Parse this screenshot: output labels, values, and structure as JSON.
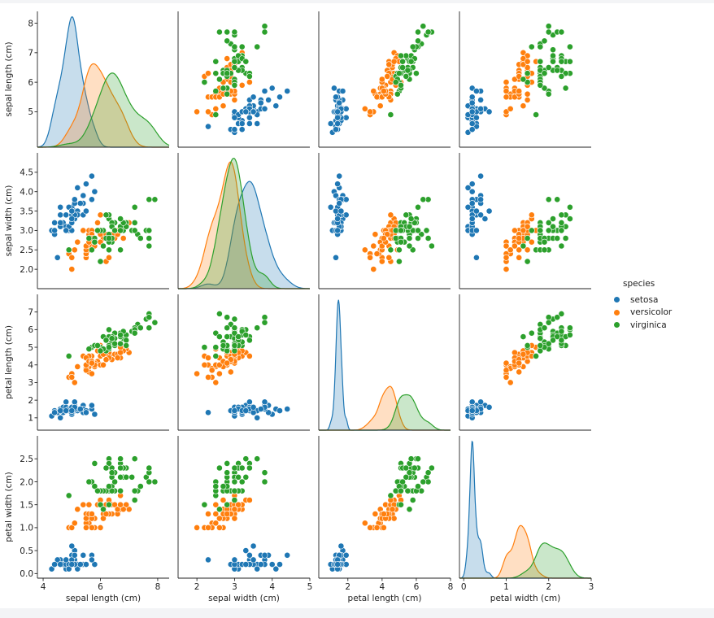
{
  "chart_data": {
    "type": "pairplot",
    "variables": [
      "sepal length (cm)",
      "sepal width (cm)",
      "petal length (cm)",
      "petal width (cm)"
    ],
    "axes": [
      {
        "label": "sepal length (cm)",
        "lim": [
          3.8,
          8.4
        ],
        "ticks": [
          4,
          6,
          8
        ],
        "y_ticks": [
          5,
          6,
          7,
          8
        ]
      },
      {
        "label": "sepal width (cm)",
        "lim": [
          1.5,
          5.0
        ],
        "ticks": [
          2,
          3,
          4,
          5
        ],
        "y_ticks": [
          2.0,
          2.5,
          3.0,
          3.5,
          4.0,
          4.5
        ]
      },
      {
        "label": "petal length (cm)",
        "lim": [
          0.3,
          8.0
        ],
        "ticks": [
          2,
          4,
          6,
          8
        ],
        "y_ticks": [
          1,
          2,
          3,
          4,
          5,
          6,
          7
        ]
      },
      {
        "label": "petal width (cm)",
        "lim": [
          -0.1,
          3.0
        ],
        "ticks": [
          0,
          1,
          2,
          3
        ],
        "y_ticks": [
          0.0,
          0.5,
          1.0,
          1.5,
          2.0,
          2.5
        ]
      }
    ],
    "hue_title": "species",
    "species": [
      {
        "name": "setosa",
        "color": "#1f77b4",
        "points": [
          [
            5.1,
            3.5,
            1.4,
            0.2
          ],
          [
            4.9,
            3.0,
            1.4,
            0.2
          ],
          [
            4.7,
            3.2,
            1.3,
            0.2
          ],
          [
            4.6,
            3.1,
            1.5,
            0.2
          ],
          [
            5.0,
            3.6,
            1.4,
            0.2
          ],
          [
            5.4,
            3.9,
            1.7,
            0.4
          ],
          [
            4.6,
            3.4,
            1.4,
            0.3
          ],
          [
            5.0,
            3.4,
            1.5,
            0.2
          ],
          [
            4.4,
            2.9,
            1.4,
            0.2
          ],
          [
            4.9,
            3.1,
            1.5,
            0.1
          ],
          [
            5.4,
            3.7,
            1.5,
            0.2
          ],
          [
            4.8,
            3.4,
            1.6,
            0.2
          ],
          [
            4.8,
            3.0,
            1.4,
            0.1
          ],
          [
            4.3,
            3.0,
            1.1,
            0.1
          ],
          [
            5.8,
            4.0,
            1.2,
            0.2
          ],
          [
            5.7,
            4.4,
            1.5,
            0.4
          ],
          [
            5.4,
            3.9,
            1.3,
            0.4
          ],
          [
            5.1,
            3.5,
            1.4,
            0.3
          ],
          [
            5.7,
            3.8,
            1.7,
            0.3
          ],
          [
            5.1,
            3.8,
            1.5,
            0.3
          ],
          [
            5.4,
            3.4,
            1.7,
            0.2
          ],
          [
            5.1,
            3.7,
            1.5,
            0.4
          ],
          [
            4.6,
            3.6,
            1.0,
            0.2
          ],
          [
            5.1,
            3.3,
            1.7,
            0.5
          ],
          [
            4.8,
            3.4,
            1.9,
            0.2
          ],
          [
            5.0,
            3.0,
            1.6,
            0.2
          ],
          [
            5.0,
            3.4,
            1.6,
            0.4
          ],
          [
            5.2,
            3.5,
            1.5,
            0.2
          ],
          [
            5.2,
            3.4,
            1.4,
            0.2
          ],
          [
            4.7,
            3.2,
            1.6,
            0.2
          ],
          [
            4.8,
            3.1,
            1.6,
            0.2
          ],
          [
            5.4,
            3.4,
            1.5,
            0.4
          ],
          [
            5.2,
            4.1,
            1.5,
            0.1
          ],
          [
            5.5,
            4.2,
            1.4,
            0.2
          ],
          [
            4.9,
            3.1,
            1.5,
            0.2
          ],
          [
            5.0,
            3.2,
            1.2,
            0.2
          ],
          [
            5.5,
            3.5,
            1.3,
            0.2
          ],
          [
            4.9,
            3.6,
            1.4,
            0.1
          ],
          [
            4.4,
            3.0,
            1.3,
            0.2
          ],
          [
            5.1,
            3.4,
            1.5,
            0.2
          ],
          [
            5.0,
            3.5,
            1.3,
            0.3
          ],
          [
            4.5,
            2.3,
            1.3,
            0.3
          ],
          [
            4.4,
            3.2,
            1.3,
            0.2
          ],
          [
            5.0,
            3.5,
            1.6,
            0.6
          ],
          [
            5.1,
            3.8,
            1.9,
            0.4
          ],
          [
            4.8,
            3.0,
            1.4,
            0.3
          ],
          [
            5.1,
            3.8,
            1.6,
            0.2
          ],
          [
            4.6,
            3.2,
            1.4,
            0.2
          ],
          [
            5.3,
            3.7,
            1.5,
            0.2
          ],
          [
            5.0,
            3.3,
            1.4,
            0.2
          ]
        ]
      },
      {
        "name": "versicolor",
        "color": "#ff7f0e",
        "points": [
          [
            7.0,
            3.2,
            4.7,
            1.4
          ],
          [
            6.4,
            3.2,
            4.5,
            1.5
          ],
          [
            6.9,
            3.1,
            4.9,
            1.5
          ],
          [
            5.5,
            2.3,
            4.0,
            1.3
          ],
          [
            6.5,
            2.8,
            4.6,
            1.5
          ],
          [
            5.7,
            2.8,
            4.5,
            1.3
          ],
          [
            6.3,
            3.3,
            4.7,
            1.6
          ],
          [
            4.9,
            2.4,
            3.3,
            1.0
          ],
          [
            6.6,
            2.9,
            4.6,
            1.3
          ],
          [
            5.2,
            2.7,
            3.9,
            1.4
          ],
          [
            5.0,
            2.0,
            3.5,
            1.0
          ],
          [
            5.9,
            3.0,
            4.2,
            1.5
          ],
          [
            6.0,
            2.2,
            4.0,
            1.0
          ],
          [
            6.1,
            2.9,
            4.7,
            1.4
          ],
          [
            5.6,
            2.9,
            3.6,
            1.3
          ],
          [
            6.7,
            3.1,
            4.4,
            1.4
          ],
          [
            5.6,
            3.0,
            4.5,
            1.5
          ],
          [
            5.8,
            2.7,
            4.1,
            1.0
          ],
          [
            6.2,
            2.2,
            4.5,
            1.5
          ],
          [
            5.6,
            2.5,
            3.9,
            1.1
          ],
          [
            5.9,
            3.2,
            4.8,
            1.8
          ],
          [
            6.1,
            2.8,
            4.0,
            1.3
          ],
          [
            6.3,
            2.5,
            4.9,
            1.5
          ],
          [
            6.1,
            2.8,
            4.7,
            1.2
          ],
          [
            6.4,
            2.9,
            4.3,
            1.3
          ],
          [
            6.6,
            3.0,
            4.4,
            1.4
          ],
          [
            6.8,
            2.8,
            4.8,
            1.4
          ],
          [
            6.7,
            3.0,
            5.0,
            1.7
          ],
          [
            6.0,
            2.9,
            4.5,
            1.5
          ],
          [
            5.7,
            2.6,
            3.5,
            1.0
          ],
          [
            5.5,
            2.4,
            3.8,
            1.1
          ],
          [
            5.5,
            2.4,
            3.7,
            1.0
          ],
          [
            5.8,
            2.7,
            3.9,
            1.2
          ],
          [
            6.0,
            2.7,
            5.1,
            1.6
          ],
          [
            5.4,
            3.0,
            4.5,
            1.5
          ],
          [
            6.0,
            3.4,
            4.5,
            1.6
          ],
          [
            6.7,
            3.1,
            4.7,
            1.5
          ],
          [
            6.3,
            2.3,
            4.4,
            1.3
          ],
          [
            5.6,
            3.0,
            4.1,
            1.3
          ],
          [
            5.5,
            2.5,
            4.0,
            1.3
          ],
          [
            5.5,
            2.6,
            4.4,
            1.2
          ],
          [
            6.1,
            3.0,
            4.6,
            1.4
          ],
          [
            5.8,
            2.6,
            4.0,
            1.2
          ],
          [
            5.0,
            2.3,
            3.3,
            1.0
          ],
          [
            5.6,
            2.7,
            4.2,
            1.3
          ],
          [
            5.7,
            3.0,
            4.2,
            1.2
          ],
          [
            5.7,
            2.9,
            4.2,
            1.3
          ],
          [
            6.2,
            2.9,
            4.3,
            1.3
          ],
          [
            5.1,
            2.5,
            3.0,
            1.1
          ],
          [
            5.7,
            2.8,
            4.1,
            1.3
          ]
        ]
      },
      {
        "name": "virginica",
        "color": "#2ca02c",
        "points": [
          [
            6.3,
            3.3,
            6.0,
            2.5
          ],
          [
            5.8,
            2.7,
            5.1,
            1.9
          ],
          [
            7.1,
            3.0,
            5.9,
            2.1
          ],
          [
            6.3,
            2.9,
            5.6,
            1.8
          ],
          [
            6.5,
            3.0,
            5.8,
            2.2
          ],
          [
            7.6,
            3.0,
            6.6,
            2.1
          ],
          [
            4.9,
            2.5,
            4.5,
            1.7
          ],
          [
            7.3,
            2.9,
            6.3,
            1.8
          ],
          [
            6.7,
            2.5,
            5.8,
            1.8
          ],
          [
            7.2,
            3.6,
            6.1,
            2.5
          ],
          [
            6.5,
            3.2,
            5.1,
            2.0
          ],
          [
            6.4,
            2.7,
            5.3,
            1.9
          ],
          [
            6.8,
            3.0,
            5.5,
            2.1
          ],
          [
            5.7,
            2.5,
            5.0,
            2.0
          ],
          [
            5.8,
            2.8,
            5.1,
            2.4
          ],
          [
            6.4,
            3.2,
            5.3,
            2.3
          ],
          [
            6.5,
            3.0,
            5.5,
            1.8
          ],
          [
            7.7,
            3.8,
            6.7,
            2.2
          ],
          [
            7.7,
            2.6,
            6.9,
            2.3
          ],
          [
            6.0,
            2.2,
            5.0,
            1.5
          ],
          [
            6.9,
            3.2,
            5.7,
            2.3
          ],
          [
            5.6,
            2.8,
            4.9,
            2.0
          ],
          [
            7.7,
            2.8,
            6.7,
            2.0
          ],
          [
            6.3,
            2.7,
            4.9,
            1.8
          ],
          [
            6.7,
            3.3,
            5.7,
            2.1
          ],
          [
            7.2,
            3.2,
            6.0,
            1.8
          ],
          [
            6.2,
            2.8,
            4.8,
            1.8
          ],
          [
            6.1,
            3.0,
            4.9,
            1.8
          ],
          [
            6.4,
            2.8,
            5.6,
            2.1
          ],
          [
            7.2,
            3.0,
            5.8,
            1.6
          ],
          [
            7.4,
            2.8,
            6.1,
            1.9
          ],
          [
            7.9,
            3.8,
            6.4,
            2.0
          ],
          [
            6.4,
            2.8,
            5.6,
            2.2
          ],
          [
            6.3,
            2.8,
            5.1,
            1.5
          ],
          [
            6.1,
            2.6,
            5.6,
            1.4
          ],
          [
            7.7,
            3.0,
            6.1,
            2.3
          ],
          [
            6.3,
            3.4,
            5.6,
            2.4
          ],
          [
            6.4,
            3.1,
            5.5,
            1.8
          ],
          [
            6.0,
            3.0,
            4.8,
            1.8
          ],
          [
            6.9,
            3.1,
            5.4,
            2.1
          ],
          [
            6.7,
            3.1,
            5.6,
            2.4
          ],
          [
            6.9,
            3.1,
            5.1,
            2.3
          ],
          [
            5.8,
            2.7,
            5.1,
            1.9
          ],
          [
            6.8,
            3.2,
            5.9,
            2.3
          ],
          [
            6.7,
            3.3,
            5.7,
            2.5
          ],
          [
            6.7,
            3.0,
            5.2,
            2.3
          ],
          [
            6.3,
            2.5,
            5.0,
            1.9
          ],
          [
            6.5,
            3.0,
            5.2,
            2.0
          ],
          [
            6.2,
            3.4,
            5.4,
            2.3
          ],
          [
            5.9,
            3.0,
            5.1,
            1.8
          ]
        ]
      }
    ]
  }
}
